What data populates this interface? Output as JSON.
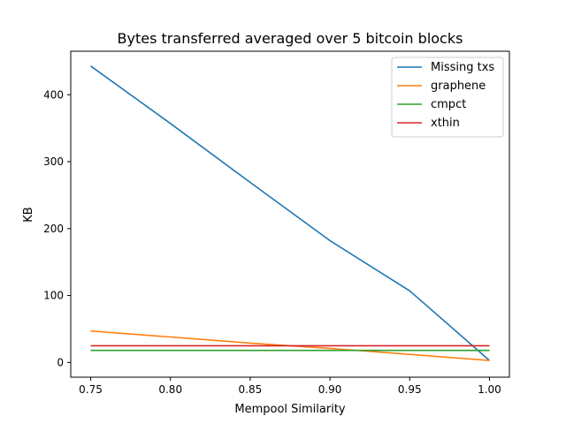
{
  "chart_data": {
    "type": "line",
    "title": "Bytes transferred averaged over 5 bitcoin blocks",
    "xlabel": "Mempool Similarity",
    "ylabel": "KB",
    "x": [
      0.75,
      0.8,
      0.85,
      0.9,
      0.95,
      1.0
    ],
    "x_ticks": [
      "0.75",
      "0.80",
      "0.85",
      "0.90",
      "0.95",
      "1.00"
    ],
    "y_ticks": [
      "0",
      "100",
      "200",
      "300",
      "400"
    ],
    "xlim": [
      0.7375,
      1.0125
    ],
    "ylim": [
      -22,
      465
    ],
    "legend_position": "upper right",
    "grid": false,
    "series": [
      {
        "name": "Missing txs",
        "color": "#1f77b4",
        "values": [
          443,
          357,
          269,
          182,
          107,
          3
        ]
      },
      {
        "name": "graphene",
        "color": "#ff7f0e",
        "values": [
          47,
          38,
          29,
          21,
          12,
          3
        ]
      },
      {
        "name": "cmpct",
        "color": "#2ca02c",
        "values": [
          18,
          18,
          18,
          18,
          18,
          18
        ]
      },
      {
        "name": "xthin",
        "color": "#d62728",
        "values": [
          25,
          25,
          25,
          25,
          25,
          25
        ]
      }
    ]
  }
}
